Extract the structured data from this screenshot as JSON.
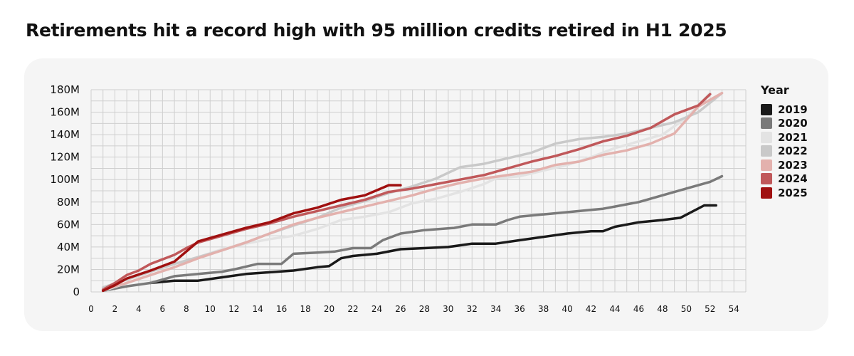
{
  "title": "Retirements hit a record high with 95 million credits retired in H1 2025",
  "chart_data": {
    "type": "line",
    "title": "Retirements hit a record high with 95 million credits retired in H1 2025",
    "xlabel": "",
    "ylabel": "",
    "xlim": [
      0,
      55
    ],
    "ylim": [
      0,
      180000000
    ],
    "x_ticks": [
      "0",
      "2",
      "4",
      "6",
      "8",
      "10",
      "12",
      "14",
      "16",
      "18",
      "20",
      "22",
      "24",
      "26",
      "28",
      "30",
      "32",
      "34",
      "36",
      "38",
      "40",
      "42",
      "44",
      "46",
      "48",
      "50",
      "52",
      "54"
    ],
    "y_ticks": [
      "0",
      "20M",
      "40M",
      "60M",
      "80M",
      "100M",
      "120M",
      "140M",
      "160M",
      "180M"
    ],
    "grid": true,
    "legend_title": "Year",
    "legend_position": "right",
    "series": [
      {
        "name": "2019",
        "color": "#1a1a1a",
        "x": [
          5,
          7,
          9,
          11,
          13,
          15,
          17,
          19,
          20,
          21,
          22,
          24,
          26,
          28,
          30,
          32,
          34,
          36,
          38,
          40,
          42,
          43,
          44,
          46,
          48,
          49.5,
          51.5,
          52.5
        ],
        "values": [
          8000000,
          10000000,
          10000000,
          13000000,
          16000000,
          17500000,
          19000000,
          22000000,
          23000000,
          30000000,
          32000000,
          34000000,
          38000000,
          39000000,
          40000000,
          43000000,
          43000000,
          46000000,
          49000000,
          52000000,
          54000000,
          54000000,
          58000000,
          62000000,
          64000000,
          66000000,
          77000000,
          77000000
        ]
      },
      {
        "name": "2020",
        "color": "#7a7a7a",
        "x": [
          1,
          2,
          3,
          5,
          7,
          9,
          11,
          12,
          14,
          16,
          17,
          19,
          20.5,
          22,
          23.5,
          24.5,
          26,
          28,
          30.5,
          32,
          34,
          35,
          36,
          38,
          40,
          42,
          43,
          44,
          46,
          48,
          50,
          52,
          53
        ],
        "values": [
          1000000,
          3000000,
          5000000,
          8000000,
          14000000,
          16000000,
          18000000,
          20000000,
          25000000,
          25000000,
          34000000,
          35000000,
          36000000,
          39000000,
          39000000,
          46000000,
          52000000,
          55000000,
          57000000,
          60000000,
          60000000,
          64000000,
          67000000,
          69000000,
          71000000,
          73000000,
          74000000,
          76000000,
          80000000,
          86000000,
          92000000,
          98000000,
          103000000
        ]
      },
      {
        "name": "2021",
        "color": "#e3e3e3",
        "x": [
          1,
          3,
          5,
          7,
          9,
          11,
          13,
          15,
          17,
          19,
          21,
          23,
          25,
          27,
          29,
          31,
          33,
          34,
          36,
          38,
          40,
          42,
          44,
          46,
          48,
          50,
          52
        ],
        "values": [
          1000000,
          8000000,
          15000000,
          22000000,
          31000000,
          38000000,
          43000000,
          47000000,
          50000000,
          56000000,
          64000000,
          67000000,
          71000000,
          79000000,
          83000000,
          89000000,
          96000000,
          101000000,
          103000000,
          108000000,
          113000000,
          120000000,
          128000000,
          134000000,
          140000000,
          155000000,
          177000000
        ]
      },
      {
        "name": "2022",
        "color": "#c9c9c9",
        "x": [
          1,
          3,
          5,
          7,
          9,
          11,
          13,
          15,
          17,
          19,
          21,
          23,
          25,
          27,
          29,
          31,
          33,
          35,
          37,
          39,
          41,
          43,
          45,
          47,
          49,
          51,
          53
        ],
        "values": [
          4000000,
          11000000,
          18000000,
          25000000,
          31000000,
          37000000,
          44000000,
          52000000,
          59000000,
          66000000,
          75000000,
          81000000,
          88000000,
          94000000,
          101000000,
          111000000,
          114000000,
          119000000,
          124000000,
          132000000,
          136000000,
          138000000,
          141000000,
          146000000,
          151000000,
          160000000,
          177000000
        ]
      },
      {
        "name": "2023",
        "color": "#e3b1ad",
        "x": [
          1,
          3,
          5,
          7,
          9,
          11,
          13,
          15,
          17,
          19,
          21,
          23,
          25,
          27,
          29,
          31,
          33,
          35,
          37,
          39,
          41,
          43,
          45,
          47,
          49,
          51,
          53
        ],
        "values": [
          2000000,
          8000000,
          15000000,
          22000000,
          30000000,
          37000000,
          44000000,
          52000000,
          60000000,
          66000000,
          71000000,
          76000000,
          81000000,
          86000000,
          92000000,
          97000000,
          101000000,
          104000000,
          107000000,
          113000000,
          116000000,
          122000000,
          126000000,
          132000000,
          141000000,
          165000000,
          177000000
        ]
      },
      {
        "name": "2024",
        "color": "#c0585a",
        "x": [
          1,
          2,
          3,
          4,
          5,
          6,
          7,
          8,
          9,
          11,
          13,
          15,
          17,
          19,
          21,
          23,
          25,
          27,
          29,
          31,
          33,
          35,
          37,
          39,
          41,
          43,
          45,
          47,
          49,
          51,
          52
        ],
        "values": [
          2000000,
          8000000,
          15000000,
          19000000,
          25000000,
          29000000,
          33000000,
          39000000,
          44000000,
          50000000,
          56000000,
          61000000,
          67000000,
          72000000,
          77000000,
          82000000,
          89000000,
          92000000,
          96000000,
          100000000,
          104000000,
          110000000,
          116000000,
          121000000,
          127000000,
          134000000,
          139000000,
          146000000,
          158000000,
          166000000,
          176000000
        ]
      },
      {
        "name": "2025",
        "color": "#a01010",
        "x": [
          1,
          2,
          3,
          5,
          7,
          9,
          11,
          13,
          15,
          17,
          19,
          21,
          23,
          25,
          26
        ],
        "values": [
          1000000,
          6000000,
          12000000,
          19000000,
          27000000,
          45000000,
          51000000,
          57000000,
          62000000,
          70000000,
          75000000,
          82000000,
          86000000,
          95000000,
          95000000
        ]
      }
    ]
  }
}
